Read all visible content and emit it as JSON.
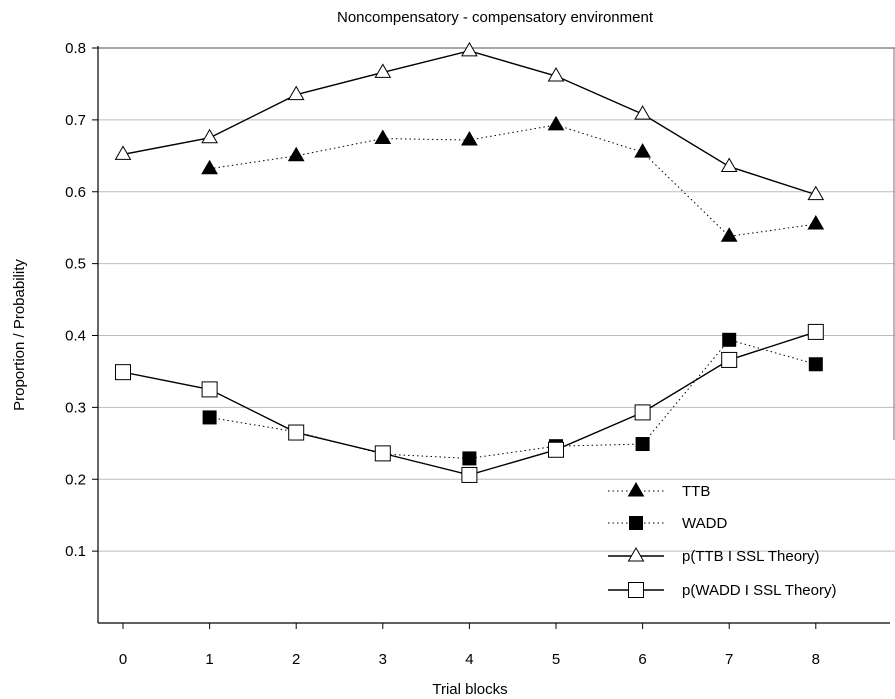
{
  "chart_data": {
    "type": "line",
    "title": "Noncompensatory - compensatory  environment",
    "xlabel": "Trial blocks",
    "ylabel": "Proportion / Probability",
    "x": [
      0,
      1,
      2,
      3,
      4,
      5,
      6,
      7,
      8
    ],
    "xticks": [
      "0",
      "1",
      "2",
      "3",
      "4",
      "5",
      "6",
      "7",
      "8"
    ],
    "yticks": [
      "0.1",
      "0.2",
      "0.3",
      "0.4",
      "0.5",
      "0.6",
      "0.7",
      "0.8"
    ],
    "ylim": [
      0.0,
      0.8
    ],
    "grid": "horizontal",
    "legend_position": "bottom-right",
    "series": [
      {
        "name": "TTB",
        "style": "dotted",
        "marker": "triangle-filled",
        "x": [
          1,
          2,
          3,
          4,
          5,
          6,
          7,
          8
        ],
        "values": [
          0.632,
          0.65,
          0.674,
          0.672,
          0.693,
          0.655,
          0.538,
          0.555
        ]
      },
      {
        "name": "WADD",
        "style": "dotted",
        "marker": "square-filled",
        "x": [
          1,
          2,
          3,
          4,
          5,
          6,
          7,
          8
        ],
        "values": [
          0.286,
          0.266,
          0.235,
          0.229,
          0.246,
          0.249,
          0.394,
          0.36
        ]
      },
      {
        "name": "p(TTB I SSL Theory)",
        "style": "solid",
        "marker": "triangle-open",
        "x": [
          0,
          1,
          2,
          3,
          4,
          5,
          6,
          7,
          8
        ],
        "values": [
          0.652,
          0.675,
          0.735,
          0.766,
          0.796,
          0.761,
          0.708,
          0.635,
          0.596
        ]
      },
      {
        "name": "p(WADD I SSL Theory)",
        "style": "solid",
        "marker": "square-open",
        "x": [
          0,
          1,
          2,
          3,
          4,
          5,
          6,
          7,
          8
        ],
        "values": [
          0.349,
          0.325,
          0.265,
          0.236,
          0.206,
          0.241,
          0.293,
          0.366,
          0.405
        ]
      }
    ]
  }
}
